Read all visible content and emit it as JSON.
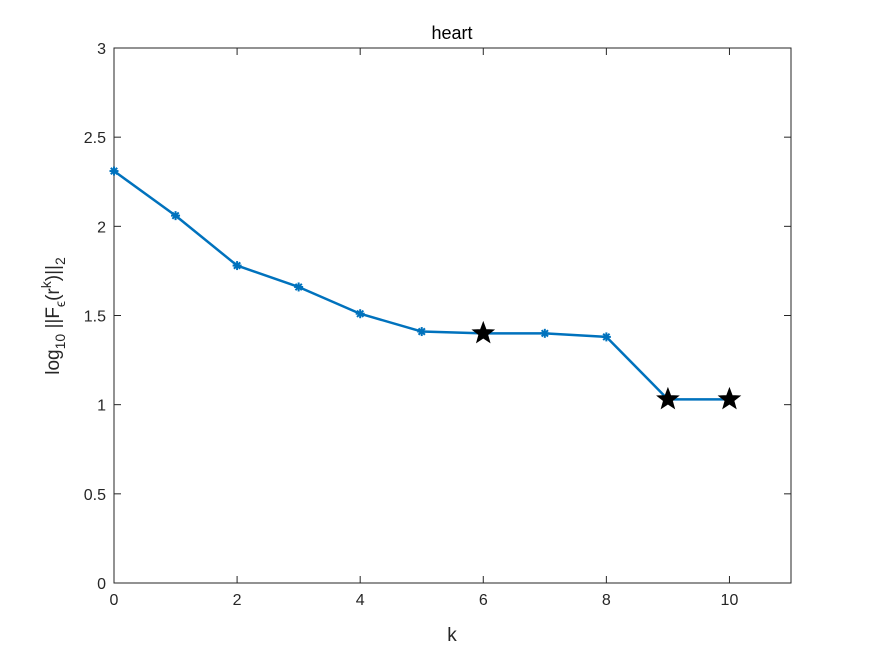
{
  "chart_data": {
    "type": "line",
    "title": "heart",
    "xlabel": "k",
    "ylabel": {
      "prefix": "log",
      "prefix_sub": "10",
      "body_a": " ||F",
      "eps_sub": "ϵ",
      "body_b": "(r",
      "k_sup": "k",
      "body_c": ")||",
      "end_sub": "2"
    },
    "xlim": [
      0,
      11
    ],
    "ylim": [
      0,
      3
    ],
    "xticks": [
      0,
      2,
      4,
      6,
      8,
      10
    ],
    "xtick_labels": [
      "0",
      "2",
      "4",
      "6",
      "8",
      "10"
    ],
    "yticks": [
      0,
      0.5,
      1,
      1.5,
      2,
      2.5,
      3
    ],
    "ytick_labels": [
      "0",
      "0.5",
      "1",
      "1.5",
      "2",
      "2.5",
      "3"
    ],
    "grid": false,
    "series": [
      {
        "x": [
          0,
          1,
          2,
          3,
          4,
          5,
          6,
          7,
          8,
          9,
          10
        ],
        "y": [
          2.31,
          2.06,
          1.78,
          1.66,
          1.51,
          1.41,
          1.4,
          1.4,
          1.38,
          1.03,
          1.03
        ],
        "marker": "asterisk",
        "color": "#0072BD"
      }
    ],
    "star_markers": {
      "x": [
        6,
        9,
        10
      ],
      "y": [
        1.4,
        1.03,
        1.03
      ],
      "color": "#000000"
    }
  }
}
